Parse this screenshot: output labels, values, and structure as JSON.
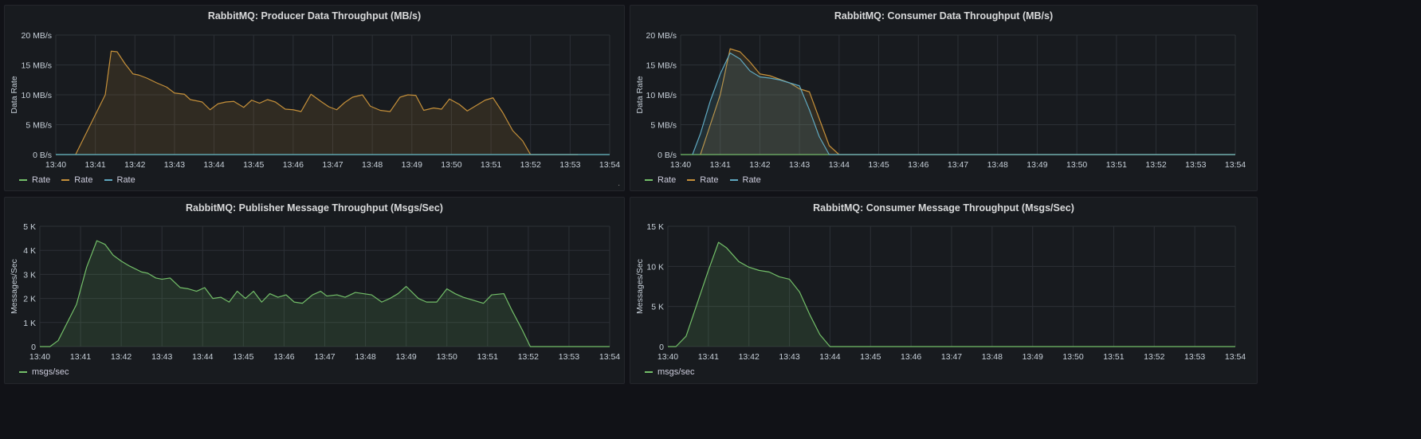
{
  "colors": {
    "panel_bg": "#181b1f",
    "grid": "#2c3036",
    "axis_text": "#c7d0d9",
    "green": "#73bf69",
    "orange": "#f2a93b",
    "blue": "#5794f2"
  },
  "panels": [
    {
      "title": "RabbitMQ: Producer Data Throughput (MB/s)",
      "legend": [
        {
          "label": "Rate",
          "color": "#73bf69"
        },
        {
          "label": "Rate",
          "color": "#c5903a"
        },
        {
          "label": "Rate",
          "color": "#5fa8c0"
        }
      ],
      "corner_mark": "."
    },
    {
      "title": "RabbitMQ: Consumer Data Throughput (MB/s)",
      "legend": [
        {
          "label": "Rate",
          "color": "#73bf69"
        },
        {
          "label": "Rate",
          "color": "#c5903a"
        },
        {
          "label": "Rate",
          "color": "#5fa8c0"
        }
      ]
    },
    {
      "title": "RabbitMQ: Publisher Message Throughput (Msgs/Sec)",
      "legend": [
        {
          "label": "msgs/sec",
          "color": "#73bf69"
        }
      ]
    },
    {
      "title": "RabbitMQ: Consumer Message Throughput (Msgs/Sec)",
      "legend": [
        {
          "label": "msgs/sec",
          "color": "#73bf69"
        }
      ]
    }
  ],
  "chart_data": [
    {
      "type": "area",
      "title": "RabbitMQ: Producer Data Throughput (MB/s)",
      "ylabel": "Data Rate",
      "xlabel": "",
      "x_ticks": [
        "13:40",
        "13:41",
        "13:42",
        "13:43",
        "13:44",
        "13:45",
        "13:46",
        "13:47",
        "13:48",
        "13:49",
        "13:50",
        "13:51",
        "13:52",
        "13:53",
        "13:54"
      ],
      "y_ticks": [
        "0 B/s",
        "5 MB/s",
        "10 MB/s",
        "15 MB/s",
        "20 MB/s"
      ],
      "ylim": [
        0,
        20
      ],
      "xlim": [
        0,
        14
      ],
      "grid": true,
      "legend_position": "bottom-left",
      "series": [
        {
          "name": "Rate",
          "color": "#73bf69",
          "fill": false,
          "x": [
            0,
            14
          ],
          "y": [
            0,
            0
          ]
        },
        {
          "name": "Rate",
          "color": "#c5903a",
          "fill": true,
          "x": [
            0.5,
            1.25,
            1.4,
            1.55,
            1.75,
            1.95,
            2.1,
            2.3,
            2.55,
            2.8,
            3.0,
            3.25,
            3.4,
            3.7,
            3.9,
            4.1,
            4.3,
            4.5,
            4.75,
            4.95,
            5.15,
            5.35,
            5.55,
            5.8,
            6.0,
            6.2,
            6.45,
            6.7,
            6.9,
            7.1,
            7.3,
            7.5,
            7.75,
            7.95,
            8.2,
            8.45,
            8.7,
            8.9,
            9.1,
            9.3,
            9.55,
            9.75,
            9.95,
            10.2,
            10.4,
            10.6,
            10.85,
            11.05,
            11.3,
            11.55,
            11.8,
            12.0,
            12.2,
            12.45,
            12.75,
            13.0,
            13.2
          ],
          "y": [
            0,
            10,
            17.3,
            17.2,
            15.2,
            13.5,
            13.3,
            12.8,
            12.0,
            11.3,
            10.3,
            10.1,
            9.2,
            8.8,
            7.5,
            8.5,
            8.8,
            8.9,
            7.9,
            9.1,
            8.6,
            9.2,
            8.8,
            7.6,
            7.5,
            7.2,
            10.1,
            8.9,
            8.0,
            7.5,
            8.7,
            9.6,
            10.0,
            8.1,
            7.4,
            7.2,
            9.6,
            10.0,
            9.9,
            7.4,
            7.8,
            7.6,
            9.3,
            8.4,
            7.3,
            8.1,
            9.1,
            9.5,
            7.0,
            4.0,
            2.3,
            0,
            0,
            0,
            0,
            0,
            0
          ]
        },
        {
          "name": "Rate",
          "color": "#5fa8c0",
          "fill": false,
          "x": [
            0,
            14
          ],
          "y": [
            0,
            0
          ]
        }
      ]
    },
    {
      "type": "area",
      "title": "RabbitMQ: Consumer Data Throughput (MB/s)",
      "ylabel": "Data Rate",
      "xlabel": "",
      "x_ticks": [
        "13:40",
        "13:41",
        "13:42",
        "13:43",
        "13:44",
        "13:45",
        "13:46",
        "13:47",
        "13:48",
        "13:49",
        "13:50",
        "13:51",
        "13:52",
        "13:53",
        "13:54"
      ],
      "y_ticks": [
        "0 B/s",
        "5 MB/s",
        "10 MB/s",
        "15 MB/s",
        "20 MB/s"
      ],
      "ylim": [
        0,
        20
      ],
      "xlim": [
        0,
        14
      ],
      "grid": true,
      "legend_position": "bottom-left",
      "series": [
        {
          "name": "Rate",
          "color": "#73bf69",
          "fill": false,
          "x": [
            0,
            14
          ],
          "y": [
            0,
            0
          ]
        },
        {
          "name": "Rate",
          "color": "#c5903a",
          "fill": true,
          "x": [
            0.5,
            1.0,
            1.25,
            1.5,
            1.75,
            2.0,
            2.25,
            2.5,
            2.75,
            3.0,
            3.25,
            3.5,
            3.75,
            4.0,
            14.0
          ],
          "y": [
            0,
            10,
            17.7,
            17.2,
            15.5,
            13.5,
            13.2,
            12.6,
            12.0,
            11.0,
            10.5,
            6.0,
            1.5,
            0,
            0
          ]
        },
        {
          "name": "Rate",
          "color": "#5fa8c0",
          "fill": true,
          "x": [
            0.3,
            0.5,
            0.75,
            1.0,
            1.25,
            1.5,
            1.75,
            2.0,
            2.25,
            2.5,
            2.75,
            3.0,
            3.25,
            3.5,
            3.75,
            14.0
          ],
          "y": [
            0,
            3.5,
            9.0,
            13.5,
            17.0,
            16.0,
            14.0,
            13.0,
            12.8,
            12.5,
            12.0,
            11.5,
            7.5,
            3.0,
            0,
            0
          ]
        }
      ]
    },
    {
      "type": "area",
      "title": "RabbitMQ: Publisher Message Throughput (Msgs/Sec)",
      "ylabel": "Messages/Sec",
      "xlabel": "",
      "x_ticks": [
        "13:40",
        "13:41",
        "13:42",
        "13:43",
        "13:44",
        "13:45",
        "13:46",
        "13:47",
        "13:48",
        "13:49",
        "13:50",
        "13:51",
        "13:52",
        "13:53",
        "13:54"
      ],
      "y_ticks": [
        "0",
        "1 K",
        "2 K",
        "3 K",
        "4 K",
        "5 K"
      ],
      "ylim": [
        0,
        5000
      ],
      "xlim": [
        0,
        14
      ],
      "grid": true,
      "legend_position": "bottom-left",
      "series": [
        {
          "name": "msgs/sec",
          "color": "#73bf69",
          "fill": true,
          "x": [
            0,
            0.25,
            0.45,
            0.9,
            1.15,
            1.4,
            1.6,
            1.8,
            2.0,
            2.2,
            2.5,
            2.65,
            2.85,
            3.0,
            3.2,
            3.45,
            3.65,
            3.85,
            4.05,
            4.25,
            4.45,
            4.65,
            4.85,
            5.05,
            5.25,
            5.45,
            5.65,
            5.85,
            6.05,
            6.25,
            6.45,
            6.7,
            6.9,
            7.05,
            7.3,
            7.5,
            7.75,
            7.95,
            8.15,
            8.4,
            8.6,
            8.8,
            9.0,
            9.3,
            9.5,
            9.75,
            10.0,
            10.2,
            10.4,
            10.6,
            10.9,
            11.1,
            11.4,
            11.6,
            11.85,
            12.05,
            12.3,
            12.55,
            12.75,
            13.0,
            13.2,
            13.5,
            14.0
          ],
          "y": [
            0,
            0,
            250,
            1750,
            3300,
            4400,
            4250,
            3800,
            3550,
            3350,
            3100,
            3050,
            2850,
            2800,
            2850,
            2450,
            2400,
            2300,
            2450,
            2000,
            2050,
            1850,
            2300,
            2000,
            2300,
            1850,
            2200,
            2050,
            2150,
            1850,
            1800,
            2150,
            2300,
            2100,
            2150,
            2050,
            2250,
            2200,
            2150,
            1850,
            2000,
            2200,
            2500,
            2000,
            1850,
            1850,
            2400,
            2200,
            2050,
            1950,
            1800,
            2150,
            2200,
            1500,
            700,
            0,
            0,
            0,
            0,
            0,
            0,
            0,
            0
          ]
        }
      ]
    },
    {
      "type": "area",
      "title": "RabbitMQ: Consumer Message Throughput (Msgs/Sec)",
      "ylabel": "Messages/Sec",
      "xlabel": "",
      "x_ticks": [
        "13:40",
        "13:41",
        "13:42",
        "13:43",
        "13:44",
        "13:45",
        "13:46",
        "13:47",
        "13:48",
        "13:49",
        "13:50",
        "13:51",
        "13:52",
        "13:53",
        "13:54"
      ],
      "y_ticks": [
        "0",
        "5 K",
        "10 K",
        "15 K"
      ],
      "ylim": [
        0,
        15000
      ],
      "xlim": [
        0,
        14
      ],
      "grid": true,
      "legend_position": "bottom-left",
      "series": [
        {
          "name": "msgs/sec",
          "color": "#73bf69",
          "fill": true,
          "x": [
            0,
            0.2,
            0.45,
            1.0,
            1.25,
            1.45,
            1.75,
            2.0,
            2.25,
            2.5,
            2.75,
            3.0,
            3.25,
            3.5,
            3.75,
            4.0,
            14.0
          ],
          "y": [
            0,
            0,
            1300,
            9500,
            13000,
            12300,
            10600,
            9900,
            9500,
            9300,
            8700,
            8400,
            6800,
            4000,
            1500,
            0,
            0
          ]
        }
      ]
    }
  ]
}
